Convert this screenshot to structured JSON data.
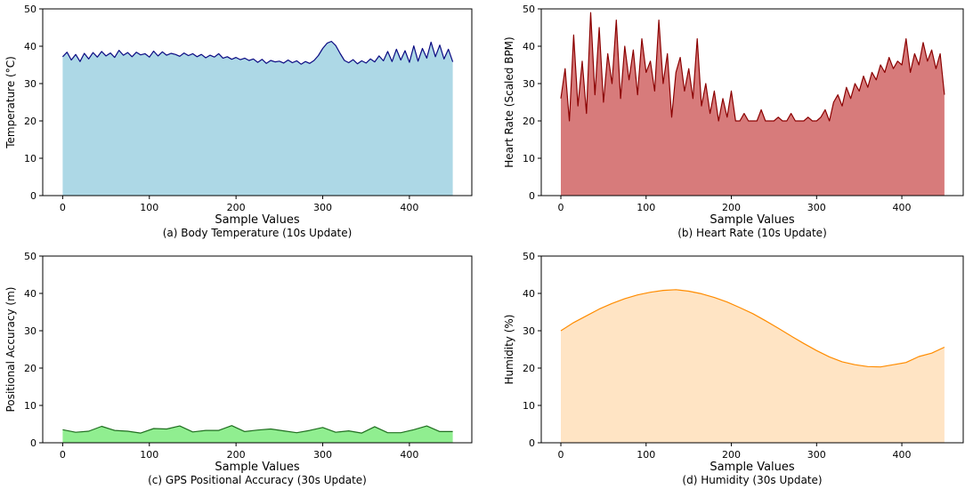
{
  "chart_data": [
    {
      "type": "area",
      "title": "(a) Body Temperature (10s Update)",
      "xlabel": "Sample Values",
      "ylabel": "Temperature (°C)",
      "xlim": [
        -23,
        472
      ],
      "ylim": [
        0,
        50
      ],
      "xticks": [
        0,
        100,
        200,
        300,
        400
      ],
      "yticks": [
        0,
        10,
        20,
        30,
        40,
        50
      ],
      "line_color": "#0a0a82",
      "fill_color": "#add8e6",
      "series": [
        {
          "x": [
            0,
            5,
            10,
            15,
            20,
            25,
            30,
            35,
            40,
            45,
            50,
            55,
            60,
            65,
            70,
            75,
            80,
            85,
            90,
            95,
            100,
            105,
            110,
            115,
            120,
            125,
            130,
            135,
            140,
            145,
            150,
            155,
            160,
            165,
            170,
            175,
            180,
            185,
            190,
            195,
            200,
            205,
            210,
            215,
            220,
            225,
            230,
            235,
            240,
            245,
            250,
            255,
            260,
            265,
            270,
            275,
            280,
            285,
            290,
            295,
            300,
            305,
            310,
            315,
            320,
            325,
            330,
            335,
            340,
            345,
            350,
            355,
            360,
            365,
            370,
            375,
            380,
            385,
            390,
            395,
            400,
            405,
            410,
            415,
            420,
            425,
            430,
            435,
            440,
            445,
            450
          ],
          "values": [
            37.2,
            38.4,
            36.3,
            37.8,
            35.9,
            38.1,
            36.6,
            38.3,
            37.1,
            38.6,
            37.4,
            38.2,
            37.0,
            38.9,
            37.6,
            38.3,
            37.2,
            38.4,
            37.7,
            38.0,
            37.1,
            38.7,
            37.4,
            38.5,
            37.6,
            38.1,
            37.8,
            37.3,
            38.2,
            37.5,
            38.0,
            37.2,
            37.8,
            36.9,
            37.6,
            37.1,
            38.0,
            36.8,
            37.2,
            36.5,
            37.0,
            36.4,
            36.8,
            36.2,
            36.6,
            35.7,
            36.5,
            35.4,
            36.2,
            35.8,
            36.0,
            35.5,
            36.3,
            35.6,
            36.1,
            35.2,
            35.9,
            35.4,
            36.2,
            37.5,
            39.4,
            40.8,
            41.3,
            40.2,
            38.1,
            36.2,
            35.6,
            36.4,
            35.3,
            36.1,
            35.5,
            36.6,
            35.8,
            37.4,
            36.1,
            38.6,
            35.9,
            39.2,
            36.3,
            38.8,
            35.7,
            40.1,
            36.0,
            39.4,
            36.8,
            41.1,
            37.2,
            40.3,
            36.6,
            39.2,
            35.8
          ]
        }
      ]
    },
    {
      "type": "area",
      "title": "(b) Heart Rate (10s Update)",
      "xlabel": "Sample Values",
      "ylabel": "Heart Rate (Scaled BPM)",
      "xlim": [
        -23,
        472
      ],
      "ylim": [
        0,
        50
      ],
      "xticks": [
        0,
        100,
        200,
        300,
        400
      ],
      "yticks": [
        0,
        10,
        20,
        30,
        40,
        50
      ],
      "line_color": "#8b0000",
      "fill_color": "#d77b7b",
      "series": [
        {
          "x": [
            0,
            5,
            10,
            15,
            20,
            25,
            30,
            35,
            40,
            45,
            50,
            55,
            60,
            65,
            70,
            75,
            80,
            85,
            90,
            95,
            100,
            105,
            110,
            115,
            120,
            125,
            130,
            135,
            140,
            145,
            150,
            155,
            160,
            165,
            170,
            175,
            180,
            185,
            190,
            195,
            200,
            205,
            210,
            215,
            220,
            225,
            230,
            235,
            240,
            245,
            250,
            255,
            260,
            265,
            270,
            275,
            280,
            285,
            290,
            295,
            300,
            305,
            310,
            315,
            320,
            325,
            330,
            335,
            340,
            345,
            350,
            355,
            360,
            365,
            370,
            375,
            380,
            385,
            390,
            395,
            400,
            405,
            410,
            415,
            420,
            425,
            430,
            435,
            440,
            445,
            450
          ],
          "values": [
            26,
            34,
            20,
            43,
            24,
            36,
            22,
            49,
            27,
            45,
            25,
            38,
            30,
            47,
            26,
            40,
            31,
            39,
            27,
            42,
            33,
            36,
            28,
            47,
            30,
            38,
            21,
            33,
            37,
            28,
            34,
            26,
            42,
            24,
            30,
            22,
            28,
            20,
            26,
            21,
            28,
            20,
            20,
            22,
            20,
            20,
            20,
            23,
            20,
            20,
            20,
            21,
            20,
            20,
            22,
            20,
            20,
            20,
            21,
            20,
            20,
            21,
            23,
            20,
            25,
            27,
            24,
            29,
            26,
            30,
            28,
            32,
            29,
            33,
            31,
            35,
            33,
            37,
            34,
            36,
            35,
            42,
            33,
            38,
            35,
            41,
            36,
            39,
            34,
            38,
            27
          ]
        }
      ]
    },
    {
      "type": "area",
      "title": "(c) GPS Positional Accuracy (30s Update)",
      "xlabel": "Sample Values",
      "ylabel": "Positional Accuracy (m)",
      "xlim": [
        -23,
        472
      ],
      "ylim": [
        0,
        50
      ],
      "xticks": [
        0,
        100,
        200,
        300,
        400
      ],
      "yticks": [
        0,
        10,
        20,
        30,
        40,
        50
      ],
      "line_color": "#1f6e1f",
      "fill_color": "#90ee90",
      "series": [
        {
          "x": [
            0,
            15,
            30,
            45,
            60,
            75,
            90,
            105,
            120,
            135,
            150,
            165,
            180,
            195,
            210,
            225,
            240,
            255,
            270,
            285,
            300,
            315,
            330,
            345,
            360,
            375,
            390,
            405,
            420,
            435,
            450
          ],
          "values": [
            3.5,
            2.8,
            3.1,
            4.4,
            3.3,
            3.1,
            2.6,
            3.8,
            3.7,
            4.5,
            2.9,
            3.3,
            3.3,
            4.6,
            3.0,
            3.4,
            3.7,
            3.2,
            2.7,
            3.3,
            4.1,
            2.8,
            3.2,
            2.6,
            4.3,
            2.7,
            2.7,
            3.5,
            4.5,
            3.0,
            3.0
          ]
        }
      ]
    },
    {
      "type": "area",
      "title": "(d) Humidity (30s Update)",
      "xlabel": "Sample Values",
      "ylabel": "Humidity (%)",
      "xlim": [
        -23,
        472
      ],
      "ylim": [
        0,
        50
      ],
      "xticks": [
        0,
        100,
        200,
        300,
        400
      ],
      "yticks": [
        0,
        10,
        20,
        30,
        40,
        50
      ],
      "line_color": "#ff8c00",
      "fill_color": "#ffe4c4",
      "series": [
        {
          "x": [
            0,
            15,
            30,
            45,
            60,
            75,
            90,
            105,
            120,
            135,
            150,
            165,
            180,
            195,
            210,
            225,
            240,
            255,
            270,
            285,
            300,
            315,
            330,
            345,
            360,
            375,
            390,
            405,
            420,
            435,
            450
          ],
          "values": [
            30.0,
            32.2,
            34.0,
            35.8,
            37.3,
            38.6,
            39.6,
            40.3,
            40.8,
            41.0,
            40.6,
            39.9,
            38.9,
            37.7,
            36.2,
            34.6,
            32.7,
            30.7,
            28.6,
            26.6,
            24.7,
            23.0,
            21.7,
            20.9,
            20.4,
            20.3,
            20.9,
            21.5,
            23.1,
            24.0,
            25.6
          ]
        }
      ]
    }
  ]
}
